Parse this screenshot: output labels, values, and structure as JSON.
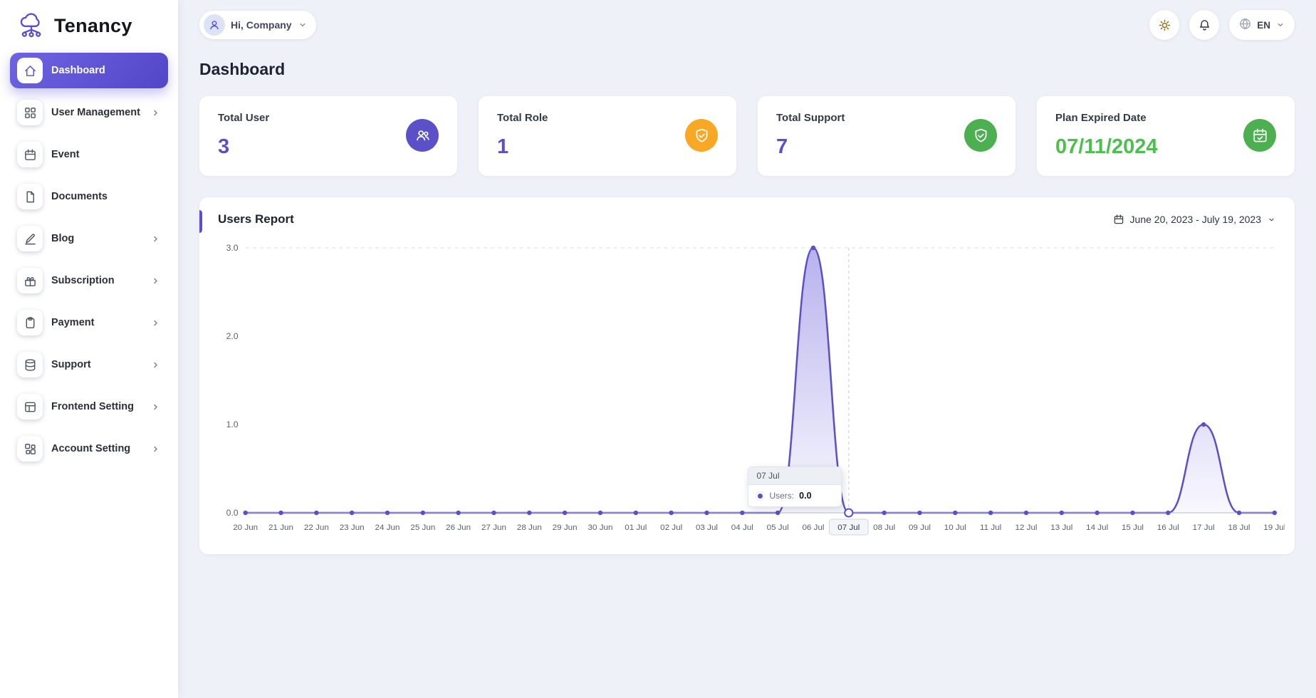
{
  "app": {
    "name": "Tenancy",
    "logo_icon": "cloud-network-icon"
  },
  "topbar": {
    "greeting": "Hi, Company",
    "language": "EN",
    "icons": [
      "theme-toggle-sun-icon",
      "notifications-bell-icon",
      "language-globe-icon",
      "chevron-down-icon"
    ]
  },
  "sidebar": {
    "items": [
      {
        "key": "dashboard",
        "label": "Dashboard",
        "icon": "home-icon",
        "glyph": "home",
        "chevron": false,
        "active": true
      },
      {
        "key": "user-management",
        "label": "User Management",
        "icon": "user-management-icon",
        "glyph": "grid",
        "chevron": true,
        "active": false
      },
      {
        "key": "event",
        "label": "Event",
        "icon": "event-calendar-icon",
        "glyph": "calendar",
        "chevron": false,
        "active": false
      },
      {
        "key": "documents",
        "label": "Documents",
        "icon": "documents-file-icon",
        "glyph": "file",
        "chevron": false,
        "active": false
      },
      {
        "key": "blog",
        "label": "Blog",
        "icon": "blog-pen-icon",
        "glyph": "pen",
        "chevron": true,
        "active": false
      },
      {
        "key": "subscription",
        "label": "Subscription",
        "icon": "subscription-gift-icon",
        "glyph": "gift",
        "chevron": true,
        "active": false
      },
      {
        "key": "payment",
        "label": "Payment",
        "icon": "payment-clipboard-icon",
        "glyph": "clipboard",
        "chevron": true,
        "active": false
      },
      {
        "key": "support",
        "label": "Support",
        "icon": "support-database-icon",
        "glyph": "database",
        "chevron": true,
        "active": false
      },
      {
        "key": "frontend-setting",
        "label": "Frontend Setting",
        "icon": "frontend-layout-icon",
        "glyph": "layout",
        "chevron": true,
        "active": false
      },
      {
        "key": "account-setting",
        "label": "Account Setting",
        "icon": "account-squares-icon",
        "glyph": "squares",
        "chevron": true,
        "active": false
      }
    ]
  },
  "page": {
    "title": "Dashboard"
  },
  "cards": [
    {
      "title": "Total User",
      "value": "3",
      "value_color": "#5b50c7",
      "icon": "users-icon",
      "icon_bg": "#5b50c7"
    },
    {
      "title": "Total Role",
      "value": "1",
      "value_color": "#5b50c7",
      "icon": "shield-check-icon",
      "icon_bg": "#f9a825"
    },
    {
      "title": "Total Support",
      "value": "7",
      "value_color": "#5b50c7",
      "icon": "shield-check-icon",
      "icon_bg": "#4caf50"
    },
    {
      "title": "Plan Expired Date",
      "value": "07/11/2024",
      "value_color": "#4cc04c",
      "icon": "calendar-check-icon",
      "icon_bg": "#4caf50"
    }
  ],
  "report": {
    "title": "Users Report",
    "date_range": "June 20, 2023 - July 19, 2023"
  },
  "colors": {
    "accent": "#5a50cf",
    "stat_purple": "#5b50c7",
    "stat_orange": "#f9a825",
    "stat_green": "#4caf50",
    "expired_green": "#4cc04c",
    "background": "#eef1f7"
  },
  "chart_data": {
    "type": "area",
    "title": "Users Report",
    "categories": [
      "20 Jun",
      "21 Jun",
      "22 Jun",
      "23 Jun",
      "24 Jun",
      "25 Jun",
      "26 Jun",
      "27 Jun",
      "28 Jun",
      "29 Jun",
      "30 Jun",
      "01 Jul",
      "02 Jul",
      "03 Jul",
      "04 Jul",
      "05 Jul",
      "06 Jul",
      "07 Jul",
      "08 Jul",
      "09 Jul",
      "10 Jul",
      "11 Jul",
      "12 Jul",
      "13 Jul",
      "14 Jul",
      "15 Jul",
      "16 Jul",
      "17 Jul",
      "18 Jul",
      "19 Jul"
    ],
    "series": [
      {
        "name": "Users",
        "values": [
          0,
          0,
          0,
          0,
          0,
          0,
          0,
          0,
          0,
          0,
          0,
          0,
          0,
          0,
          0,
          0,
          3,
          0,
          0,
          0,
          0,
          0,
          0,
          0,
          0,
          0,
          0,
          1,
          0,
          0
        ]
      }
    ],
    "xlabel": "",
    "ylabel": "",
    "ylim": [
      0,
      3
    ],
    "yticks": [
      "0.0",
      "1.0",
      "2.0",
      "3.0"
    ],
    "grid": "top-dashed",
    "legend_position": "none",
    "line_color": "#5b50c7",
    "fill_color": "#7d73e0",
    "tooltip": {
      "index": 17,
      "category": "07 Jul",
      "label": "Users:",
      "value": "0.0"
    }
  }
}
